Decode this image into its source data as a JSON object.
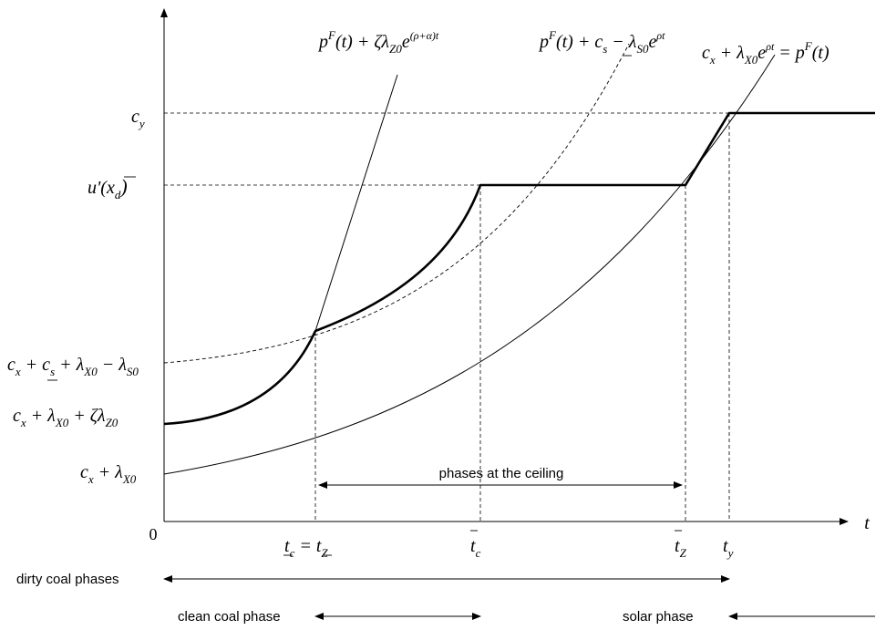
{
  "origin_label": "0",
  "x_axis_label": "t",
  "y_labels": {
    "cy": {
      "base": "c",
      "sub": "y"
    },
    "u_prime": {
      "text": "u'(x",
      "sub": "d",
      "close": ")"
    },
    "lvl1": {
      "parts": [
        "c",
        "x",
        " + ",
        "c",
        "s",
        " + λ",
        "X0",
        " − λ",
        "S0"
      ]
    },
    "lvl2": {
      "parts": [
        "c",
        "x",
        " + λ",
        "X0",
        " + ζλ",
        "Z0"
      ]
    },
    "lvl3": {
      "parts": [
        "c",
        "x",
        " + λ",
        "X0"
      ]
    }
  },
  "curve_labels": {
    "steep": {
      "a": "p",
      "sup1": "F",
      "b": "(t) + ζλ",
      "sub": "Z0",
      "c": "e",
      "sup2": "(ρ+α)t"
    },
    "dashed": {
      "a": "p",
      "sup1": "F",
      "b": "(t) + ",
      "c": "c",
      "sub1": "s",
      "d": " − λ",
      "sub2": "S0",
      "e": "e",
      "sup2": "ρt"
    },
    "thin": {
      "a": "c",
      "sub1": "x",
      "b": " + λ",
      "sub2": "X0",
      "c": "e",
      "sup1": "ρt",
      "d": " = p",
      "sup2": "F",
      "e": "(t)"
    }
  },
  "x_ticks": {
    "t1": {
      "a": "t",
      "sub1": "c",
      "eq": " = ",
      "b": "t",
      "sub2": "Z"
    },
    "t2": {
      "a": "t",
      "sub": "c"
    },
    "t3": {
      "a": "t",
      "sub": "Z"
    },
    "t4": {
      "a": "t",
      "sub": "y"
    }
  },
  "annotation_ceiling": "phases at the ceiling",
  "phase_labels": {
    "dirty": "dirty coal phases",
    "clean": "clean coal phase",
    "solar": "solar phase"
  }
}
